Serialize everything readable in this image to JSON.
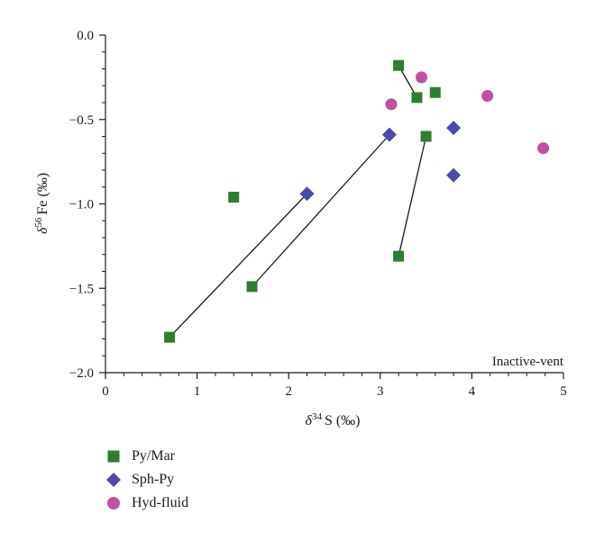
{
  "chart_data": {
    "type": "scatter",
    "xlabel": {
      "prefix": "δ",
      "sup": "34",
      "rest": "S (‰)"
    },
    "ylabel": {
      "prefix": "δ",
      "sup": "56",
      "rest": "Fe (‰)"
    },
    "xlim": [
      0,
      5
    ],
    "ylim": [
      -2.0,
      0.0
    ],
    "x_ticks": [
      0,
      1,
      2,
      3,
      4,
      5
    ],
    "y_ticks": [
      0.0,
      -0.5,
      -1.0,
      -1.5,
      -2.0
    ],
    "x_tick_labels": [
      "0",
      "1",
      "2",
      "3",
      "4",
      "5"
    ],
    "y_tick_labels": [
      "0.0",
      "−0.5",
      "−1.0",
      "−1.5",
      "−2.0"
    ],
    "grid": false,
    "annotation": "Inactive-vent",
    "series": [
      {
        "name": "Py/Mar",
        "marker": "square",
        "color": "#2e7d32",
        "points": [
          {
            "x": 0.7,
            "y": -1.79
          },
          {
            "x": 1.4,
            "y": -0.96
          },
          {
            "x": 1.6,
            "y": -1.49
          },
          {
            "x": 3.2,
            "y": -0.18
          },
          {
            "x": 3.4,
            "y": -0.37
          },
          {
            "x": 3.5,
            "y": -0.6
          },
          {
            "x": 3.6,
            "y": -0.34
          },
          {
            "x": 3.2,
            "y": -1.31
          }
        ]
      },
      {
        "name": "Sph-Py",
        "marker": "diamond",
        "color": "#4a4aa8",
        "points": [
          {
            "x": 2.2,
            "y": -0.94
          },
          {
            "x": 3.1,
            "y": -0.59
          },
          {
            "x": 3.8,
            "y": -0.55
          },
          {
            "x": 3.8,
            "y": -0.83
          }
        ]
      },
      {
        "name": "Hyd-fluid",
        "marker": "circle",
        "color": "#c34fa0",
        "points": [
          {
            "x": 3.12,
            "y": -0.41
          },
          {
            "x": 3.45,
            "y": -0.25
          },
          {
            "x": 4.17,
            "y": -0.36
          },
          {
            "x": 4.78,
            "y": -0.67
          }
        ]
      }
    ],
    "tie_lines": [
      {
        "from": [
          0.7,
          -1.79
        ],
        "to": [
          2.2,
          -0.94
        ]
      },
      {
        "from": [
          1.6,
          -1.49
        ],
        "to": [
          3.1,
          -0.59
        ]
      },
      {
        "from": [
          3.2,
          -1.31
        ],
        "to": [
          3.5,
          -0.6
        ]
      },
      {
        "from": [
          3.2,
          -0.18
        ],
        "to": [
          3.4,
          -0.37
        ]
      }
    ]
  }
}
